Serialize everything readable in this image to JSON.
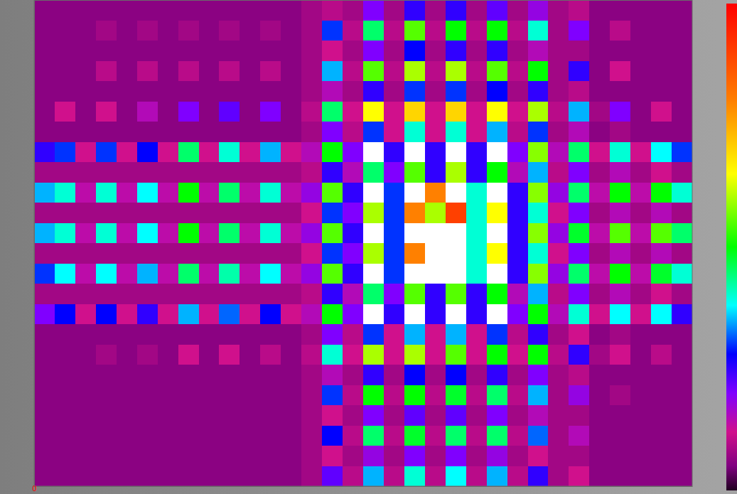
{
  "chart_data": {
    "type": "heatmap",
    "xlim": [
      0,
      32
    ],
    "ylim": [
      0,
      24
    ],
    "xticks": [
      0
    ],
    "tick_labels": "x",
    "colorbar": {
      "range": [
        0,
        100
      ],
      "stops": [
        0,
        5,
        12,
        20,
        28,
        38,
        50,
        65,
        80,
        100
      ],
      "colors": [
        "#200020",
        "#800080",
        "#d0108c",
        "#8000ff",
        "#0000ff",
        "#00ffff",
        "#00ff00",
        "#ffff00",
        "#ff8000",
        "#ff0000"
      ]
    },
    "z": [
      [
        6,
        6,
        6,
        6,
        6,
        6,
        6,
        6,
        6,
        6,
        6,
        6,
        6,
        8,
        10,
        8,
        20,
        8,
        25,
        8,
        25,
        8,
        22,
        8,
        18,
        8,
        10,
        6,
        6,
        6,
        6,
        6
      ],
      [
        6,
        6,
        6,
        8,
        6,
        8,
        6,
        8,
        6,
        8,
        6,
        8,
        6,
        8,
        30,
        10,
        45,
        10,
        55,
        10,
        50,
        10,
        50,
        10,
        40,
        8,
        20,
        6,
        10,
        6,
        6,
        6
      ],
      [
        6,
        6,
        6,
        6,
        6,
        6,
        6,
        6,
        6,
        6,
        6,
        6,
        6,
        8,
        12,
        8,
        20,
        8,
        28,
        8,
        25,
        8,
        25,
        8,
        15,
        8,
        8,
        6,
        6,
        6,
        6,
        6
      ],
      [
        6,
        6,
        6,
        10,
        6,
        10,
        6,
        10,
        6,
        10,
        6,
        10,
        6,
        8,
        35,
        10,
        55,
        10,
        60,
        10,
        60,
        10,
        55,
        10,
        50,
        8,
        25,
        6,
        12,
        6,
        6,
        6
      ],
      [
        6,
        6,
        6,
        6,
        6,
        6,
        6,
        6,
        6,
        6,
        6,
        6,
        6,
        8,
        15,
        8,
        25,
        8,
        30,
        8,
        30,
        8,
        28,
        8,
        25,
        8,
        10,
        6,
        6,
        6,
        6,
        6
      ],
      [
        6,
        12,
        6,
        12,
        6,
        15,
        6,
        20,
        6,
        22,
        6,
        20,
        6,
        10,
        45,
        12,
        65,
        12,
        70,
        12,
        70,
        12,
        65,
        12,
        60,
        10,
        35,
        8,
        20,
        6,
        12,
        6
      ],
      [
        6,
        6,
        6,
        6,
        6,
        6,
        6,
        6,
        6,
        6,
        6,
        6,
        6,
        8,
        20,
        10,
        30,
        12,
        40,
        12,
        40,
        12,
        35,
        10,
        30,
        8,
        15,
        6,
        8,
        6,
        6,
        6
      ],
      [
        25,
        30,
        12,
        30,
        12,
        28,
        12,
        45,
        12,
        40,
        12,
        35,
        12,
        15,
        50,
        20,
        120,
        25,
        120,
        25,
        120,
        25,
        120,
        20,
        58,
        15,
        45,
        12,
        40,
        12,
        38,
        30
      ],
      [
        8,
        8,
        8,
        8,
        8,
        8,
        8,
        8,
        8,
        8,
        8,
        8,
        8,
        10,
        25,
        15,
        45,
        20,
        55,
        25,
        60,
        25,
        50,
        15,
        35,
        10,
        20,
        8,
        15,
        8,
        12,
        8
      ],
      [
        35,
        40,
        14,
        40,
        14,
        38,
        14,
        50,
        14,
        45,
        14,
        40,
        14,
        18,
        55,
        25,
        120,
        30,
        120,
        80,
        120,
        40,
        120,
        25,
        58,
        18,
        45,
        14,
        50,
        14,
        50,
        40
      ],
      [
        8,
        8,
        8,
        8,
        8,
        8,
        8,
        8,
        8,
        8,
        8,
        8,
        8,
        12,
        30,
        20,
        60,
        30,
        80,
        60,
        90,
        40,
        65,
        25,
        40,
        12,
        20,
        8,
        15,
        8,
        15,
        8
      ],
      [
        35,
        40,
        14,
        40,
        14,
        38,
        14,
        50,
        14,
        45,
        14,
        40,
        14,
        18,
        55,
        25,
        120,
        30,
        120,
        120,
        120,
        40,
        120,
        25,
        58,
        18,
        48,
        14,
        55,
        14,
        55,
        45
      ],
      [
        8,
        8,
        8,
        8,
        8,
        8,
        8,
        8,
        8,
        8,
        8,
        8,
        8,
        12,
        30,
        20,
        60,
        30,
        80,
        120,
        120,
        40,
        65,
        25,
        40,
        12,
        20,
        8,
        15,
        8,
        15,
        8
      ],
      [
        30,
        38,
        14,
        38,
        14,
        35,
        14,
        45,
        14,
        42,
        14,
        38,
        14,
        18,
        55,
        25,
        120,
        30,
        120,
        120,
        120,
        40,
        120,
        25,
        58,
        18,
        45,
        14,
        50,
        14,
        48,
        40
      ],
      [
        8,
        8,
        8,
        8,
        8,
        8,
        8,
        8,
        8,
        8,
        8,
        8,
        8,
        10,
        25,
        15,
        45,
        20,
        55,
        25,
        55,
        25,
        50,
        15,
        35,
        10,
        20,
        8,
        15,
        8,
        12,
        8
      ],
      [
        20,
        28,
        12,
        28,
        12,
        25,
        12,
        35,
        12,
        32,
        12,
        28,
        12,
        15,
        50,
        20,
        120,
        25,
        120,
        25,
        120,
        25,
        120,
        20,
        50,
        15,
        40,
        12,
        38,
        12,
        38,
        25
      ],
      [
        6,
        6,
        6,
        6,
        6,
        6,
        6,
        6,
        6,
        6,
        6,
        6,
        6,
        8,
        20,
        10,
        30,
        12,
        35,
        12,
        35,
        12,
        30,
        10,
        25,
        8,
        12,
        6,
        8,
        6,
        6,
        6
      ],
      [
        6,
        6,
        6,
        8,
        6,
        8,
        6,
        12,
        6,
        12,
        6,
        10,
        6,
        10,
        40,
        12,
        60,
        12,
        60,
        12,
        55,
        12,
        50,
        12,
        50,
        10,
        25,
        8,
        12,
        6,
        10,
        6
      ],
      [
        6,
        6,
        6,
        6,
        6,
        6,
        6,
        6,
        6,
        6,
        6,
        6,
        6,
        8,
        15,
        8,
        25,
        8,
        28,
        8,
        28,
        8,
        25,
        8,
        20,
        8,
        10,
        6,
        6,
        6,
        6,
        6
      ],
      [
        6,
        6,
        6,
        6,
        6,
        6,
        6,
        6,
        6,
        6,
        6,
        6,
        6,
        8,
        30,
        10,
        50,
        10,
        50,
        10,
        48,
        10,
        45,
        10,
        35,
        8,
        18,
        6,
        8,
        6,
        6,
        6
      ],
      [
        6,
        6,
        6,
        6,
        6,
        6,
        6,
        6,
        6,
        6,
        6,
        6,
        6,
        8,
        12,
        8,
        20,
        8,
        22,
        8,
        22,
        8,
        20,
        8,
        15,
        8,
        8,
        6,
        6,
        6,
        6,
        6
      ],
      [
        6,
        6,
        6,
        6,
        6,
        6,
        6,
        6,
        6,
        6,
        6,
        6,
        6,
        8,
        28,
        10,
        45,
        10,
        48,
        10,
        45,
        10,
        45,
        10,
        32,
        8,
        15,
        6,
        6,
        6,
        6,
        6
      ],
      [
        6,
        6,
        6,
        6,
        6,
        6,
        6,
        6,
        6,
        6,
        6,
        6,
        6,
        8,
        12,
        8,
        18,
        8,
        20,
        8,
        20,
        8,
        18,
        8,
        12,
        8,
        8,
        6,
        6,
        6,
        6,
        6
      ],
      [
        6,
        6,
        6,
        6,
        6,
        6,
        6,
        6,
        6,
        6,
        6,
        6,
        6,
        8,
        22,
        10,
        35,
        10,
        40,
        10,
        38,
        10,
        35,
        10,
        25,
        8,
        12,
        6,
        6,
        6,
        6,
        6
      ]
    ]
  }
}
